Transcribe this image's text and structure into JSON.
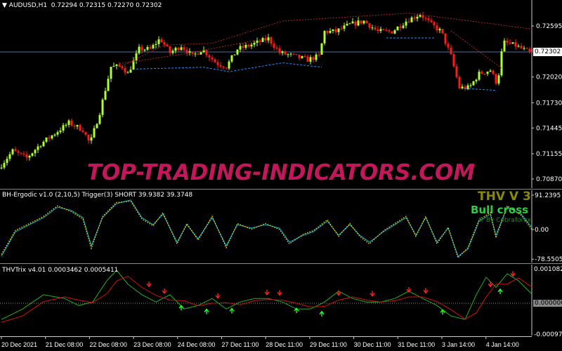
{
  "chart_data": [
    {
      "type": "candlestick",
      "title": "AUDUSD,H1",
      "ohlc_header": [
        "0.72294",
        "0.72315",
        "0.72270",
        "0.72302"
      ],
      "current_price": "0.72302",
      "y_ticks": [
        "0.72595",
        "0.72020",
        "0.71730",
        "0.71445",
        "0.71155",
        "0.70870"
      ],
      "ylim": [
        0.7085,
        0.7288
      ],
      "bars": 190,
      "close_path_bar_price": [
        [
          0,
          0.70989
        ],
        [
          5,
          0.71187
        ],
        [
          10,
          0.71107
        ],
        [
          15,
          0.71266
        ],
        [
          20,
          0.71384
        ],
        [
          25,
          0.71503
        ],
        [
          30,
          0.71424
        ],
        [
          32.5,
          0.71266
        ],
        [
          36,
          0.71622
        ],
        [
          40,
          0.72136
        ],
        [
          44,
          0.72136
        ],
        [
          46,
          0.72057
        ],
        [
          50,
          0.72334
        ],
        [
          54,
          0.72334
        ],
        [
          57.5,
          0.72453
        ],
        [
          61,
          0.72294
        ],
        [
          65,
          0.72373
        ],
        [
          69,
          0.72255
        ],
        [
          72.5,
          0.72334
        ],
        [
          77.5,
          0.72176
        ],
        [
          81,
          0.72136
        ],
        [
          85,
          0.72334
        ],
        [
          89,
          0.72373
        ],
        [
          92.5,
          0.72413
        ],
        [
          96,
          0.72453
        ],
        [
          100,
          0.72294
        ],
        [
          105,
          0.72255
        ],
        [
          110,
          0.72215
        ],
        [
          114,
          0.72255
        ],
        [
          116,
          0.72532
        ],
        [
          120,
          0.72532
        ],
        [
          125,
          0.72611
        ],
        [
          130,
          0.7265
        ],
        [
          135,
          0.72532
        ],
        [
          140,
          0.72532
        ],
        [
          145,
          0.7265
        ],
        [
          150,
          0.7273
        ],
        [
          154,
          0.72611
        ],
        [
          157.5,
          0.72532
        ],
        [
          161,
          0.72255
        ],
        [
          164,
          0.71899
        ],
        [
          167.5,
          0.71899
        ],
        [
          171,
          0.72057
        ],
        [
          175,
          0.72097
        ],
        [
          177.5,
          0.71938
        ],
        [
          179.5,
          0.72413
        ],
        [
          184,
          0.72373
        ],
        [
          189,
          0.72294
        ]
      ],
      "trendlines_red": [
        [
          [
            42,
            0.7213
          ],
          [
            58,
            0.7238
          ],
          [
            75,
            0.724
          ],
          [
            100,
            0.7265
          ]
        ],
        [
          [
            100,
            0.7265
          ],
          [
            145,
            0.7274
          ],
          [
            189,
            0.7256
          ]
        ],
        [
          [
            42,
            0.7217
          ],
          [
            65,
            0.7228
          ],
          [
            90,
            0.7243
          ]
        ],
        [
          [
            160,
            0.7254
          ],
          [
            178,
            0.7212
          ]
        ]
      ],
      "trendlines_blue": [
        [
          [
            48,
            0.7211
          ],
          [
            72,
            0.7213
          ],
          [
            81,
            0.7208
          ],
          [
            100,
            0.7218
          ],
          [
            114,
            0.7213
          ]
        ],
        [
          [
            137,
            0.7246
          ],
          [
            154,
            0.7246
          ]
        ],
        [
          [
            165,
            0.7189
          ],
          [
            176,
            0.7187
          ]
        ]
      ],
      "colors": {
        "up": "#adff2f",
        "down": "#ff1a1a",
        "trend_red": "#b22222",
        "trend_blue": "#1e90ff"
      }
    },
    {
      "type": "line",
      "title": "BH-Ergodic v1.0 (2,10,5) Trigger(3) SHORT 39.9382 39.3748",
      "y_ticks": [
        "91.2395",
        "0.00",
        "-78.5505"
      ],
      "ylim": [
        -78.5505,
        91.2395
      ],
      "series": [
        {
          "color": "#00bcd4",
          "style": "solid",
          "points": [
            [
              0,
              -70.8
            ],
            [
              5,
              -5.6
            ],
            [
              10,
              13
            ],
            [
              15,
              31.7
            ],
            [
              20,
              59.6
            ],
            [
              25,
              50.3
            ],
            [
              29,
              31.7
            ],
            [
              32,
              -42.8
            ],
            [
              36,
              31.7
            ],
            [
              41,
              68.9
            ],
            [
              46,
              78.2
            ],
            [
              50,
              31.7
            ],
            [
              54,
              13
            ],
            [
              57.5,
              41
            ],
            [
              62.5,
              -33.5
            ],
            [
              66,
              13
            ],
            [
              70,
              -24.2
            ],
            [
              75,
              31.7
            ],
            [
              80,
              -42.8
            ],
            [
              84,
              13
            ],
            [
              89,
              3.7
            ],
            [
              94,
              13
            ],
            [
              99,
              3.7
            ],
            [
              102.5,
              -33.5
            ],
            [
              107.5,
              -14.9
            ],
            [
              111,
              -5.6
            ],
            [
              116,
              22.3
            ],
            [
              120,
              -14.9
            ],
            [
              124,
              13
            ],
            [
              127.5,
              -14.9
            ],
            [
              131,
              -33.5
            ],
            [
              136,
              -5.6
            ],
            [
              140,
              13
            ],
            [
              144,
              31.7
            ],
            [
              147.5,
              -14.9
            ],
            [
              151,
              31.7
            ],
            [
              155,
              -33.5
            ],
            [
              159,
              3.7
            ],
            [
              162.5,
              -70.8
            ],
            [
              166,
              -52
            ],
            [
              170,
              22.3
            ],
            [
              174,
              41
            ],
            [
              176,
              -14.9
            ],
            [
              180,
              59.6
            ],
            [
              185,
              41
            ],
            [
              189,
              3.7
            ]
          ]
        },
        {
          "color": "#ffd700",
          "style": "dotted",
          "points": [
            [
              0,
              -66
            ],
            [
              5,
              -2
            ],
            [
              10,
              16
            ],
            [
              15,
              35
            ],
            [
              20,
              63
            ],
            [
              25,
              47
            ],
            [
              29,
              28
            ],
            [
              32,
              -50
            ],
            [
              36,
              35
            ],
            [
              41,
              72
            ],
            [
              46,
              75
            ],
            [
              50,
              28
            ],
            [
              54,
              10
            ],
            [
              57.5,
              45
            ],
            [
              62.5,
              -38
            ],
            [
              66,
              16
            ],
            [
              70,
              -28
            ],
            [
              75,
              35
            ],
            [
              80,
              -48
            ],
            [
              84,
              16
            ],
            [
              89,
              1
            ],
            [
              94,
              16
            ],
            [
              99,
              0
            ],
            [
              102.5,
              -38
            ],
            [
              107.5,
              -12
            ],
            [
              111,
              -3
            ],
            [
              116,
              26
            ],
            [
              120,
              -18
            ],
            [
              124,
              16
            ],
            [
              127.5,
              -18
            ],
            [
              131,
              -38
            ],
            [
              136,
              -3
            ],
            [
              140,
              16
            ],
            [
              144,
              35
            ],
            [
              147.5,
              -18
            ],
            [
              151,
              35
            ],
            [
              155,
              -38
            ],
            [
              159,
              6
            ],
            [
              162.5,
              -75
            ],
            [
              166,
              -48
            ],
            [
              170,
              26
            ],
            [
              174,
              45
            ],
            [
              176,
              -22
            ],
            [
              180,
              63
            ],
            [
              185,
              38
            ],
            [
              189,
              -2
            ]
          ]
        }
      ],
      "overlay_text": {
        "title": "THV V 3",
        "signal": "Bull cross",
        "credit": "© By Cobraforex"
      }
    },
    {
      "type": "line",
      "title": "THVTrix v4.01 0.0003462 0.0005411",
      "y_ticks": [
        "0.0010828",
        "0.0000000",
        "-0.0009731"
      ],
      "ylim": [
        -0.0009731,
        0.0010828
      ],
      "series": [
        {
          "color": "#22b022",
          "points": [
            [
              0,
              -0.00051
            ],
            [
              7.5,
              -0.00018
            ],
            [
              15,
              0.00027
            ],
            [
              22.5,
              0.00015
            ],
            [
              27.5,
              -7e-05
            ],
            [
              32.5,
              4e-05
            ],
            [
              37.5,
              0.00071
            ],
            [
              41,
              0.00104
            ],
            [
              45,
              0.0006
            ],
            [
              50,
              0.00027
            ],
            [
              55,
              4e-05
            ],
            [
              60,
              0.00027
            ],
            [
              65,
              -0.00018
            ],
            [
              70,
              -7e-05
            ],
            [
              75,
              0.00015
            ],
            [
              80,
              -0.00018
            ],
            [
              85,
              4e-05
            ],
            [
              90,
              0.00015
            ],
            [
              95,
              0.00015
            ],
            [
              100,
              4e-05
            ],
            [
              105,
              -0.00018
            ],
            [
              110,
              -0.00018
            ],
            [
              115,
              4e-05
            ],
            [
              120,
              0.00038
            ],
            [
              125,
              0.00015
            ],
            [
              130,
              4e-05
            ],
            [
              135,
              4e-05
            ],
            [
              140,
              0.00015
            ],
            [
              145,
              0.00038
            ],
            [
              150,
              0.00015
            ],
            [
              155,
              -7e-05
            ],
            [
              160,
              -0.0004
            ],
            [
              165,
              -0.00051
            ],
            [
              169,
              0.00027
            ],
            [
              172.5,
              0.00082
            ],
            [
              176,
              0.0005
            ],
            [
              180,
              0.00093
            ],
            [
              184,
              0.00071
            ],
            [
              189,
              0.00027
            ]
          ]
        },
        {
          "color": "#d01010",
          "points": [
            [
              0,
              -0.0006
            ],
            [
              7.5,
              -0.0004
            ],
            [
              15,
              5e-05
            ],
            [
              22.5,
              0.0002
            ],
            [
              27.5,
              0.0001
            ],
            [
              32.5,
              2e-05
            ],
            [
              37.5,
              0.0003
            ],
            [
              41,
              0.0007
            ],
            [
              45,
              0.00085
            ],
            [
              50,
              0.0005
            ],
            [
              55,
              0.00025
            ],
            [
              60,
              0.0001
            ],
            [
              65,
              8e-05
            ],
            [
              70,
              -8e-05
            ],
            [
              75,
              0.0
            ],
            [
              80,
              2e-05
            ],
            [
              85,
              -5e-05
            ],
            [
              90,
              8e-05
            ],
            [
              95,
              0.00012
            ],
            [
              100,
              0.0001
            ],
            [
              105,
              0.0
            ],
            [
              110,
              -0.00012
            ],
            [
              115,
              -0.0001
            ],
            [
              120,
              0.0001
            ],
            [
              125,
              0.0002
            ],
            [
              130,
              0.0001
            ],
            [
              135,
              4e-05
            ],
            [
              140,
              8e-05
            ],
            [
              145,
              0.0002
            ],
            [
              150,
              0.0002
            ],
            [
              155,
              5e-05
            ],
            [
              160,
              -0.0002
            ],
            [
              165,
              -0.0005
            ],
            [
              169,
              -0.0003
            ],
            [
              172.5,
              0.0002
            ],
            [
              176,
              0.0006
            ],
            [
              180,
              0.0006
            ],
            [
              184,
              0.0008
            ],
            [
              189,
              0.0005
            ]
          ]
        }
      ],
      "signals_down_bars": [
        52.5,
        58,
        77,
        94.5,
        99,
        120,
        132,
        145,
        151,
        174,
        182
      ],
      "signals_up_bars": [
        64,
        73,
        82,
        105,
        114,
        157,
        177.5
      ]
    }
  ],
  "x_axis": {
    "labels": [
      "20 Dec 2021",
      "21 Dec 08:00",
      "22 Dec 08:00",
      "23 Dec 08:00",
      "24 Dec 08:00",
      "27 Dec 11:00",
      "28 Dec 11:00",
      "29 Dec 11:00",
      "30 Dec 11:00",
      "31 Dec 11:00",
      "3 Jan 14:00",
      "4 Jan 14:00"
    ]
  },
  "watermark": "TOP-TRADING-INDICATORS.COM"
}
